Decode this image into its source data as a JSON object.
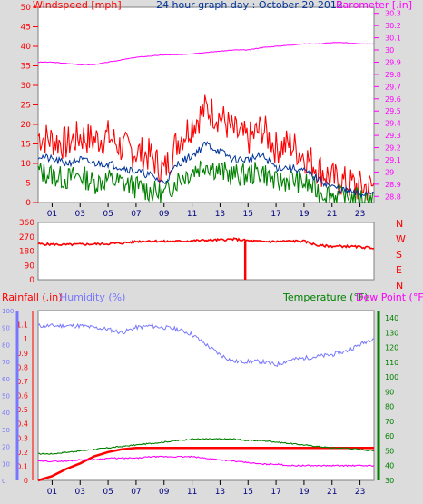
{
  "title": "24 hour graph day : October 29 2012",
  "x_ticks": [
    "01",
    "03",
    "05",
    "07",
    "09",
    "11",
    "13",
    "15",
    "17",
    "19",
    "21",
    "23"
  ],
  "colors": {
    "wind": "#ff0000",
    "gust": "#ff0000",
    "avg": "#003399",
    "low": "#008000",
    "baro": "#ff00ff",
    "dir": "#ff0000",
    "rain": "#ff0000",
    "humidity": "#7777ff",
    "temp": "#008000",
    "dew": "#ff00ff",
    "text_accent": "#ffff00"
  },
  "chart_data": [
    {
      "type": "line",
      "name": "wind-barometer",
      "left_axis_label": "Windspeed [mph]",
      "right_axis_label": "Barometer [.in]",
      "left_ticks": [
        "0",
        "5",
        "10",
        "15",
        "20",
        "25",
        "30",
        "35",
        "40",
        "45",
        "50"
      ],
      "left_ylim": [
        0,
        50
      ],
      "right_ticks": [
        "28.8",
        "28.9",
        "29",
        "29.1",
        "29.2",
        "29.3",
        "29.4",
        "29.5",
        "29.6",
        "29.7",
        "29.8",
        "29.9",
        "30",
        "30.1",
        "30.2",
        "30.3"
      ],
      "right_ylim": [
        28.75,
        30.35
      ],
      "hours": [
        0,
        1,
        2,
        3,
        4,
        5,
        6,
        7,
        8,
        9,
        10,
        11,
        12,
        13,
        14,
        15,
        16,
        17,
        18,
        19,
        20,
        21,
        22,
        23,
        24
      ],
      "series": [
        {
          "key": "gust",
          "values": [
            17,
            16,
            15,
            17,
            16,
            17,
            14,
            13,
            12,
            8,
            16,
            20,
            24,
            22,
            18,
            16,
            19,
            14,
            15,
            12,
            9,
            6,
            5,
            4,
            4
          ]
        },
        {
          "key": "avg",
          "values": [
            12,
            11,
            10,
            11,
            10,
            10,
            9,
            8,
            7,
            5,
            10,
            12,
            15,
            13,
            11,
            11,
            12,
            9,
            9,
            8,
            6,
            4,
            3,
            2,
            3
          ]
        },
        {
          "key": "low",
          "values": [
            8,
            7,
            6,
            7,
            5,
            6,
            5,
            4,
            3,
            2,
            6,
            8,
            10,
            8,
            7,
            7,
            8,
            5,
            6,
            5,
            3,
            2,
            1,
            1,
            1
          ]
        },
        {
          "key": "baro",
          "values": [
            29.9,
            29.9,
            29.89,
            29.88,
            29.88,
            29.9,
            29.92,
            29.94,
            29.95,
            29.96,
            29.96,
            29.97,
            29.98,
            29.99,
            30.0,
            30.0,
            30.02,
            30.03,
            30.04,
            30.05,
            30.05,
            30.06,
            30.06,
            30.05,
            30.05
          ]
        }
      ]
    },
    {
      "type": "line",
      "name": "wind-direction",
      "left_ticks": [
        "0",
        "90",
        "180",
        "270",
        "360"
      ],
      "ylim": [
        0,
        360
      ],
      "right_labels": [
        "N",
        "W",
        "S",
        "E",
        "N"
      ],
      "hours": [
        0,
        1,
        2,
        3,
        4,
        5,
        6,
        7,
        8,
        9,
        10,
        11,
        12,
        13,
        14,
        15,
        16,
        17,
        18,
        19,
        20,
        21,
        22,
        23,
        24
      ],
      "values": [
        225,
        222,
        220,
        222,
        224,
        226,
        230,
        240,
        245,
        240,
        242,
        245,
        248,
        250,
        255,
        245,
        240,
        240,
        243,
        242,
        215,
        210,
        210,
        205,
        200
      ],
      "spike_hour": 14.8
    },
    {
      "type": "line",
      "name": "rain-humidity-temperature",
      "rain_label": "Rainfall (.in)",
      "humidity_label": "Humidity (%)",
      "temp_label": "Temperature (°F)",
      "dew_label": "Dew Point (°F)",
      "rain_ticks": [
        "0",
        "0.1",
        "0.2",
        "0.3",
        "0.4",
        "0.5",
        "0.6",
        "0.7",
        "0.8",
        "0.9",
        "1",
        "1.1"
      ],
      "rain_ylim": [
        0,
        1.2
      ],
      "humidity_ticks": [
        "0",
        "10",
        "20",
        "30",
        "40",
        "50",
        "60",
        "70",
        "80",
        "90",
        "100"
      ],
      "humidity_ylim": [
        0,
        100
      ],
      "temp_ticks": [
        "30",
        "40",
        "50",
        "60",
        "70",
        "80",
        "90",
        "100",
        "110",
        "120",
        "130",
        "140"
      ],
      "temp_ylim": [
        30,
        145
      ],
      "hours": [
        0,
        1,
        2,
        3,
        4,
        5,
        6,
        7,
        8,
        9,
        10,
        11,
        12,
        13,
        14,
        15,
        16,
        17,
        18,
        19,
        20,
        21,
        22,
        23,
        24
      ],
      "series": [
        {
          "key": "rain",
          "values": [
            0.0,
            0.03,
            0.08,
            0.12,
            0.17,
            0.2,
            0.22,
            0.23,
            0.23,
            0.23,
            0.23,
            0.23,
            0.23,
            0.23,
            0.23,
            0.23,
            0.23,
            0.23,
            0.23,
            0.23,
            0.23,
            0.23,
            0.23,
            0.23,
            0.23
          ]
        },
        {
          "key": "humidity",
          "values": [
            91,
            91,
            91,
            91,
            90,
            89,
            87,
            90,
            91,
            90,
            89,
            86,
            80,
            74,
            70,
            70,
            70,
            68,
            71,
            72,
            73,
            74,
            76,
            80,
            84
          ]
        },
        {
          "key": "temp",
          "values": [
            48,
            48,
            49,
            50,
            51,
            52,
            53,
            54,
            55,
            56,
            57,
            58,
            58,
            58,
            58,
            57,
            57,
            56,
            55,
            54,
            53,
            52,
            52,
            51,
            50
          ]
        },
        {
          "key": "dew",
          "values": [
            43,
            43,
            43,
            44,
            44,
            45,
            45,
            45,
            46,
            46,
            46,
            46,
            45,
            44,
            43,
            42,
            41,
            41,
            40,
            40,
            40,
            40,
            40,
            40,
            40
          ]
        }
      ]
    }
  ]
}
